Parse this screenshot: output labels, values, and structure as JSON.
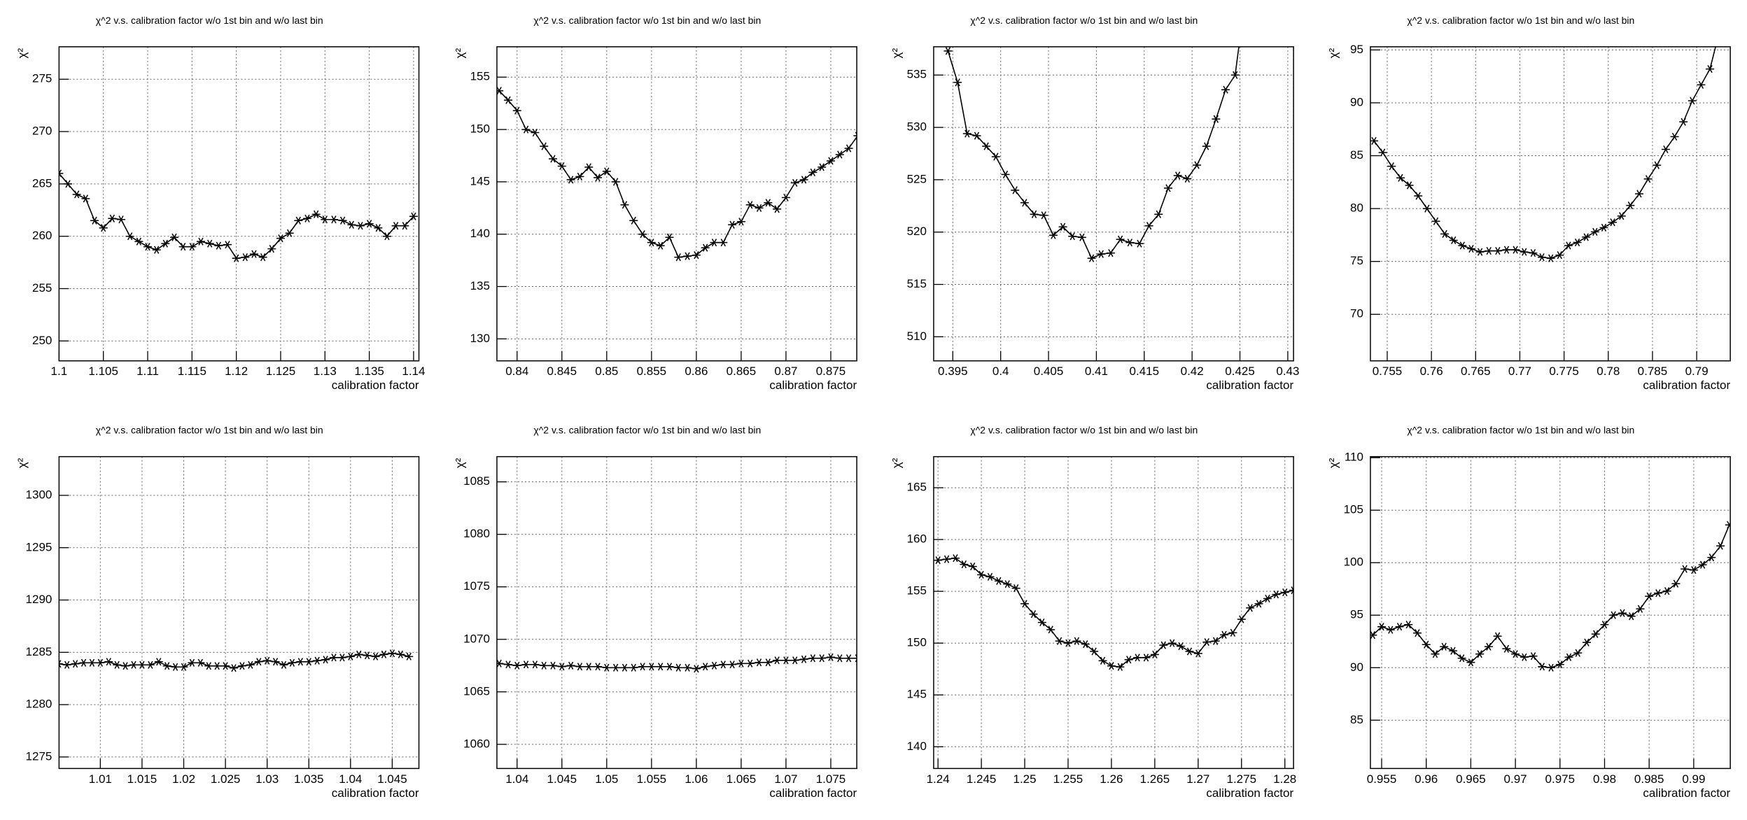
{
  "chart_data": [
    {
      "type": "line",
      "title": "χ^2 v.s. calibration factor w/o 1st bin and w/o last bin",
      "x_label": "calibration factor",
      "y_label": "χ²",
      "color": "#000000",
      "grid": true,
      "x": [
        1.1,
        1.101,
        1.102,
        1.103,
        1.104,
        1.105,
        1.106,
        1.107,
        1.108,
        1.109,
        1.11,
        1.111,
        1.112,
        1.113,
        1.114,
        1.115,
        1.116,
        1.117,
        1.118,
        1.119,
        1.12,
        1.121,
        1.122,
        1.123,
        1.124,
        1.125,
        1.126,
        1.127,
        1.128,
        1.129,
        1.13,
        1.131,
        1.132,
        1.133,
        1.134,
        1.135,
        1.136,
        1.137,
        1.138,
        1.139,
        1.14
      ],
      "values": [
        266,
        265,
        264,
        263.6,
        261.5,
        260.8,
        261.7,
        261.6,
        260,
        259.5,
        259,
        258.7,
        259.3,
        259.9,
        259,
        259,
        259.5,
        259.3,
        259.1,
        259.2,
        257.9,
        258,
        258.3,
        258,
        258.8,
        259.8,
        260.3,
        261.5,
        261.7,
        262.1,
        261.6,
        261.6,
        261.5,
        261.1,
        261,
        261.2,
        260.8,
        260,
        261,
        261,
        261.9
      ],
      "xlim": [
        1.1,
        1.1406
      ],
      "ylim": [
        248.1,
        278.1
      ],
      "xticks": [
        1.1,
        1.105,
        1.11,
        1.115,
        1.12,
        1.125,
        1.13,
        1.135,
        1.14
      ],
      "yticks": [
        250,
        255,
        260,
        265,
        270,
        275
      ]
    },
    {
      "type": "line",
      "title": "χ^2 v.s. calibration factor w/o 1st bin and w/o last bin",
      "x_label": "calibration factor",
      "y_label": "χ²",
      "color": "#000000",
      "grid": true,
      "x": [
        0.838,
        0.839,
        0.84,
        0.841,
        0.842,
        0.843,
        0.844,
        0.845,
        0.846,
        0.847,
        0.848,
        0.849,
        0.85,
        0.851,
        0.852,
        0.853,
        0.854,
        0.855,
        0.856,
        0.857,
        0.858,
        0.859,
        0.86,
        0.861,
        0.862,
        0.863,
        0.864,
        0.865,
        0.866,
        0.867,
        0.868,
        0.869,
        0.87,
        0.871,
        0.872,
        0.873,
        0.874,
        0.875,
        0.876,
        0.877,
        0.878
      ],
      "values": [
        153.7,
        152.8,
        151.8,
        150,
        149.7,
        148.4,
        147.2,
        146.5,
        145.2,
        145.5,
        146.4,
        145.4,
        146,
        145,
        142.8,
        141.3,
        140,
        139.2,
        138.9,
        139.7,
        137.8,
        137.9,
        138,
        138.7,
        139.2,
        139.2,
        140.9,
        141.2,
        142.8,
        142.5,
        143,
        142.4,
        143.5,
        144.9,
        145.2,
        145.9,
        146.4,
        147,
        147.6,
        148.2,
        149.4
      ],
      "xlim": [
        0.83775,
        0.8779
      ],
      "ylim": [
        127.9,
        157.9
      ],
      "xticks": [
        0.84,
        0.845,
        0.85,
        0.855,
        0.86,
        0.865,
        0.87,
        0.875
      ],
      "yticks": [
        130,
        135,
        140,
        145,
        150,
        155
      ]
    },
    {
      "type": "line",
      "title": "χ^2 v.s. calibration factor w/o 1st bin and w/o last bin",
      "x_label": "calibration factor",
      "y_label": "χ²",
      "color": "#000000",
      "grid": true,
      "x": [
        0.3945,
        0.3955,
        0.3965,
        0.3975,
        0.3985,
        0.3995,
        0.4005,
        0.4015,
        0.4025,
        0.4035,
        0.4045,
        0.4055,
        0.4065,
        0.4075,
        0.4085,
        0.4095,
        0.4105,
        0.4115,
        0.4125,
        0.4135,
        0.4145,
        0.4155,
        0.4165,
        0.4175,
        0.4185,
        0.4195,
        0.4205,
        0.4215,
        0.4225,
        0.4235,
        0.4245,
        0.4255
      ],
      "values": [
        537.3,
        534.3,
        529.4,
        529.2,
        528.2,
        527.2,
        525.5,
        524,
        522.8,
        521.7,
        521.6,
        519.7,
        520.5,
        519.6,
        519.5,
        517.5,
        517.9,
        518,
        519.3,
        519,
        518.9,
        520.6,
        521.7,
        524.2,
        525.4,
        525.1,
        526.4,
        528.2,
        530.8,
        533.6,
        535,
        542
      ],
      "xlim": [
        0.393,
        0.4306
      ],
      "ylim": [
        507.7,
        537.7
      ],
      "xticks": [
        0.395,
        0.4,
        0.405,
        0.41,
        0.415,
        0.42,
        0.425,
        0.43
      ],
      "yticks": [
        510,
        515,
        520,
        525,
        530,
        535
      ]
    },
    {
      "type": "line",
      "title": "χ^2 v.s. calibration factor w/o 1st bin and w/o last bin",
      "x_label": "calibration factor",
      "y_label": "χ²",
      "color": "#000000",
      "grid": true,
      "x": [
        0.7535,
        0.7545,
        0.7555,
        0.7565,
        0.7575,
        0.7585,
        0.7595,
        0.7605,
        0.7615,
        0.7625,
        0.7635,
        0.7645,
        0.7655,
        0.7665,
        0.7675,
        0.7685,
        0.7695,
        0.7705,
        0.7715,
        0.7725,
        0.7735,
        0.7745,
        0.7755,
        0.7765,
        0.7775,
        0.7785,
        0.7795,
        0.7805,
        0.7815,
        0.7825,
        0.7835,
        0.7845,
        0.7855,
        0.7865,
        0.7875,
        0.7885,
        0.7895,
        0.7905,
        0.7915,
        0.7925
      ],
      "values": [
        86.4,
        85.3,
        84,
        82.9,
        82.2,
        81.2,
        80,
        78.8,
        77.6,
        77,
        76.5,
        76.2,
        75.9,
        76,
        76,
        76.1,
        76.1,
        75.9,
        75.8,
        75.4,
        75.3,
        75.6,
        76.5,
        76.8,
        77.3,
        77.8,
        78.2,
        78.7,
        79.3,
        80.3,
        81.4,
        82.8,
        84.1,
        85.6,
        86.8,
        88.2,
        90.2,
        91.7,
        93.2,
        96.5
      ],
      "xlim": [
        0.7531,
        0.7938
      ],
      "ylim": [
        65.6,
        95.3
      ],
      "xticks": [
        0.755,
        0.76,
        0.765,
        0.77,
        0.775,
        0.78,
        0.785,
        0.79
      ],
      "yticks": [
        70,
        75,
        80,
        85,
        90,
        95
      ]
    },
    {
      "type": "line",
      "title": "χ^2 v.s. calibration factor w/o 1st bin and w/o last bin",
      "x_label": "calibration factor",
      "y_label": "χ²",
      "color": "#000000",
      "grid": true,
      "x": [
        1.005,
        1.006,
        1.007,
        1.008,
        1.009,
        1.01,
        1.011,
        1.012,
        1.013,
        1.014,
        1.015,
        1.016,
        1.017,
        1.018,
        1.019,
        1.02,
        1.021,
        1.022,
        1.023,
        1.024,
        1.025,
        1.026,
        1.027,
        1.028,
        1.029,
        1.03,
        1.031,
        1.032,
        1.033,
        1.034,
        1.035,
        1.036,
        1.037,
        1.038,
        1.039,
        1.04,
        1.041,
        1.042,
        1.043,
        1.044,
        1.045,
        1.046,
        1.047
      ],
      "values": [
        1283.9,
        1283.8,
        1283.9,
        1284,
        1284,
        1284,
        1284.1,
        1283.8,
        1283.7,
        1283.8,
        1283.8,
        1283.8,
        1284.1,
        1283.7,
        1283.6,
        1283.6,
        1284,
        1284,
        1283.7,
        1283.7,
        1283.7,
        1283.5,
        1283.7,
        1283.8,
        1284.1,
        1284.2,
        1284.1,
        1283.8,
        1284,
        1284.1,
        1284.1,
        1284.2,
        1284.3,
        1284.5,
        1284.5,
        1284.6,
        1284.8,
        1284.7,
        1284.6,
        1284.8,
        1284.9,
        1284.8,
        1284.6
      ],
      "xlim": [
        1.00505,
        1.0482
      ],
      "ylim": [
        1273.9,
        1303.7
      ],
      "xticks": [
        1.01,
        1.015,
        1.02,
        1.025,
        1.03,
        1.035,
        1.04,
        1.045
      ],
      "yticks": [
        1275,
        1280,
        1285,
        1290,
        1295,
        1300
      ]
    },
    {
      "type": "line",
      "title": "χ^2 v.s. calibration factor w/o 1st bin and w/o last bin",
      "x_label": "calibration factor",
      "y_label": "χ²",
      "color": "#000000",
      "grid": true,
      "x": [
        1.038,
        1.039,
        1.04,
        1.041,
        1.042,
        1.043,
        1.044,
        1.045,
        1.046,
        1.047,
        1.048,
        1.049,
        1.05,
        1.051,
        1.052,
        1.053,
        1.054,
        1.055,
        1.056,
        1.057,
        1.058,
        1.059,
        1.06,
        1.061,
        1.062,
        1.063,
        1.064,
        1.065,
        1.066,
        1.067,
        1.068,
        1.069,
        1.07,
        1.071,
        1.072,
        1.073,
        1.074,
        1.075,
        1.076,
        1.077,
        1.078
      ],
      "values": [
        1067.7,
        1067.6,
        1067.5,
        1067.6,
        1067.6,
        1067.5,
        1067.5,
        1067.4,
        1067.5,
        1067.4,
        1067.4,
        1067.4,
        1067.3,
        1067.3,
        1067.3,
        1067.3,
        1067.4,
        1067.4,
        1067.4,
        1067.4,
        1067.3,
        1067.3,
        1067.2,
        1067.4,
        1067.5,
        1067.6,
        1067.6,
        1067.7,
        1067.7,
        1067.8,
        1067.8,
        1068,
        1068,
        1068,
        1068.1,
        1068.2,
        1068.2,
        1068.3,
        1068.2,
        1068.2,
        1068.2
      ],
      "xlim": [
        1.03775,
        1.0779
      ],
      "ylim": [
        1057.7,
        1087.4
      ],
      "xticks": [
        1.04,
        1.045,
        1.05,
        1.055,
        1.06,
        1.065,
        1.07,
        1.075
      ],
      "yticks": [
        1060,
        1065,
        1070,
        1075,
        1080,
        1085
      ]
    },
    {
      "type": "line",
      "title": "χ^2 v.s. calibration factor w/o 1st bin and w/o last bin",
      "x_label": "calibration factor",
      "y_label": "χ²",
      "color": "#000000",
      "grid": true,
      "x": [
        1.24,
        1.241,
        1.242,
        1.243,
        1.244,
        1.245,
        1.246,
        1.247,
        1.248,
        1.249,
        1.25,
        1.251,
        1.252,
        1.253,
        1.254,
        1.255,
        1.256,
        1.257,
        1.258,
        1.259,
        1.26,
        1.261,
        1.262,
        1.263,
        1.264,
        1.265,
        1.266,
        1.267,
        1.268,
        1.269,
        1.27,
        1.271,
        1.272,
        1.273,
        1.274,
        1.275,
        1.276,
        1.277,
        1.278,
        1.279,
        1.28,
        1.281
      ],
      "values": [
        158,
        158.1,
        158.2,
        157.6,
        157.4,
        156.6,
        156.4,
        156,
        155.7,
        155.3,
        153.8,
        152.8,
        152,
        151.3,
        150.2,
        150,
        150.2,
        149.9,
        149.2,
        148.3,
        147.8,
        147.7,
        148.4,
        148.6,
        148.6,
        148.9,
        149.8,
        150,
        149.7,
        149.2,
        149,
        150.1,
        150.2,
        150.8,
        151,
        152.3,
        153.4,
        153.8,
        154.3,
        154.7,
        154.9,
        155.1
      ],
      "xlim": [
        1.2395,
        1.281
      ],
      "ylim": [
        137.9,
        168
      ],
      "xticks": [
        1.24,
        1.245,
        1.25,
        1.255,
        1.26,
        1.265,
        1.27,
        1.275,
        1.28
      ],
      "yticks": [
        140,
        145,
        150,
        155,
        160,
        165
      ]
    },
    {
      "type": "line",
      "title": "χ^2 v.s. calibration factor w/o 1st bin and w/o last bin",
      "x_label": "calibration factor",
      "y_label": "χ²",
      "color": "#000000",
      "grid": true,
      "x": [
        0.954,
        0.955,
        0.956,
        0.957,
        0.958,
        0.959,
        0.96,
        0.961,
        0.962,
        0.963,
        0.964,
        0.965,
        0.966,
        0.967,
        0.968,
        0.969,
        0.97,
        0.971,
        0.972,
        0.973,
        0.974,
        0.975,
        0.976,
        0.977,
        0.978,
        0.979,
        0.98,
        0.981,
        0.982,
        0.983,
        0.984,
        0.985,
        0.986,
        0.987,
        0.988,
        0.989,
        0.99,
        0.991,
        0.992,
        0.993,
        0.994
      ],
      "values": [
        93.1,
        93.9,
        93.6,
        93.9,
        94.1,
        93.3,
        92.2,
        91.3,
        92,
        91.6,
        90.9,
        90.5,
        91.3,
        92,
        93,
        91.8,
        91.3,
        91,
        91.1,
        90.1,
        90,
        90.3,
        91,
        91.4,
        92.4,
        93.2,
        94.1,
        95,
        95.2,
        94.9,
        95.6,
        96.8,
        97.1,
        97.3,
        98,
        99.4,
        99.3,
        99.8,
        100.5,
        101.6,
        103.6
      ],
      "xlim": [
        0.95374,
        0.9941
      ],
      "ylim": [
        80.4,
        110.1
      ],
      "xticks": [
        0.955,
        0.96,
        0.965,
        0.97,
        0.975,
        0.98,
        0.985,
        0.99
      ],
      "yticks": [
        85,
        90,
        95,
        100,
        105,
        110
      ]
    }
  ]
}
